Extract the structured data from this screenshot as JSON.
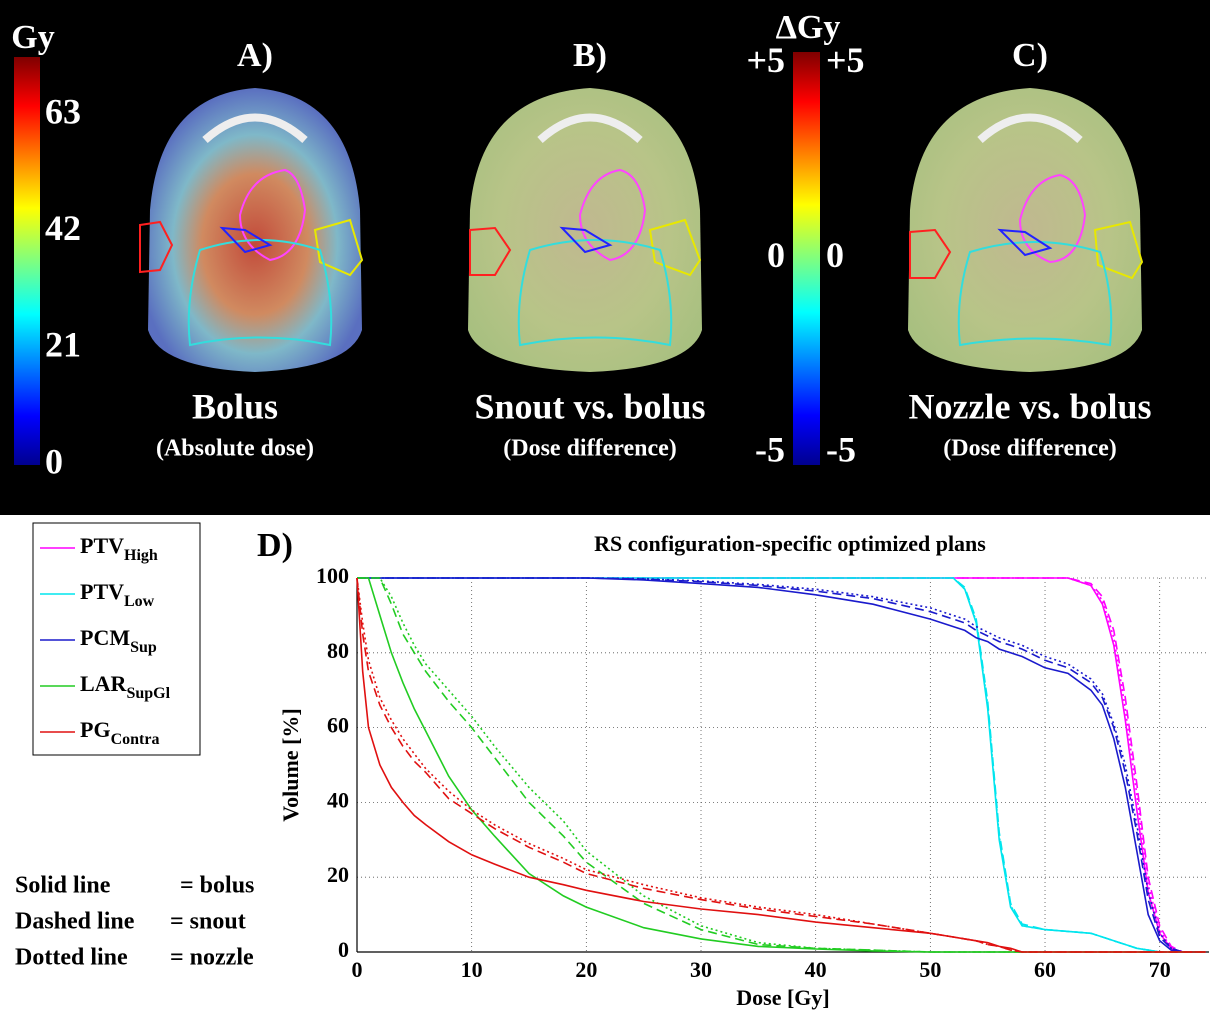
{
  "figure": {
    "colorbar_abs": {
      "unit": "Gy",
      "lim": [
        0,
        73.5
      ],
      "ticks": [
        0,
        21,
        42,
        63
      ]
    },
    "colorbar_diff": {
      "unit": "ΔGy",
      "lim": [
        -5.3,
        5.3
      ],
      "ticks": [
        {
          "value": 5,
          "label": "+5"
        },
        0,
        -5
      ]
    },
    "panels": [
      {
        "label": "A)",
        "title": "Bolus",
        "subtitle": "(Absolute dose)"
      },
      {
        "label": "B)",
        "title": "Snout vs. bolus",
        "subtitle": "(Dose difference)"
      },
      {
        "label": "C)",
        "title": "Nozzle vs. bolus",
        "subtitle": "(Dose difference)"
      }
    ]
  },
  "chart_data": {
    "type": "line",
    "panel_label": "D)",
    "title": "RS configuration-specific optimized plans",
    "x_label": "Dose [Gy]",
    "y_label": "Volume [%]",
    "xlim": [
      0,
      74.3
    ],
    "ylim": [
      0,
      100
    ],
    "xticks": [
      0,
      10,
      20,
      30,
      40,
      50,
      60,
      70
    ],
    "yticks": [
      0,
      20,
      40,
      60,
      80,
      100
    ],
    "grid": true,
    "plans": [
      {
        "style": "Solid line",
        "label": "= bolus",
        "dash": "solid"
      },
      {
        "style": "Dashed line",
        "label": "= snout",
        "dash": "dashed"
      },
      {
        "style": "Dotted line",
        "label": "= nozzle",
        "dash": "dotted"
      }
    ],
    "x": [
      0,
      0.5,
      1,
      2,
      3,
      4,
      5,
      6,
      8,
      10,
      12,
      15,
      18,
      20,
      25,
      30,
      35,
      40,
      45,
      50,
      52,
      53,
      54,
      55,
      56,
      57,
      58,
      60,
      62,
      64,
      65,
      66,
      67,
      68,
      69,
      70,
      71,
      72,
      74
    ],
    "series": [
      {
        "name": "PTV",
        "subscript": "High",
        "color": "#ff00ff",
        "values": [
          [
            100,
            100,
            100,
            100,
            100,
            100,
            100,
            100,
            100,
            100,
            100,
            100,
            100,
            100,
            100,
            100,
            100,
            100,
            100,
            100,
            100,
            100,
            100,
            100,
            100,
            100,
            100,
            100,
            100,
            98,
            93,
            82,
            62,
            38,
            16,
            5,
            1,
            0,
            0
          ],
          [
            100,
            100,
            100,
            100,
            100,
            100,
            100,
            100,
            100,
            100,
            100,
            100,
            100,
            100,
            100,
            100,
            100,
            100,
            100,
            100,
            100,
            100,
            100,
            100,
            100,
            100,
            100,
            100,
            100,
            98.5,
            95,
            86,
            68,
            45,
            20,
            7,
            1.5,
            0,
            0
          ],
          [
            100,
            100,
            100,
            100,
            100,
            100,
            100,
            100,
            100,
            100,
            100,
            100,
            100,
            100,
            100,
            100,
            100,
            100,
            100,
            100,
            100,
            100,
            100,
            100,
            100,
            100,
            100,
            100,
            100,
            98,
            94,
            84,
            65,
            42,
            18,
            6,
            1,
            0,
            0
          ]
        ]
      },
      {
        "name": "PTV",
        "subscript": "Low",
        "color": "#00e5ee",
        "values": [
          [
            100,
            100,
            100,
            100,
            100,
            100,
            100,
            100,
            100,
            100,
            100,
            100,
            100,
            100,
            100,
            100,
            100,
            100,
            100,
            100,
            100,
            97,
            88,
            65,
            30,
            12,
            7,
            6,
            5.5,
            5,
            4,
            3,
            2,
            1,
            0.5,
            0,
            0,
            0,
            0
          ],
          [
            100,
            100,
            100,
            100,
            100,
            100,
            100,
            100,
            100,
            100,
            100,
            100,
            100,
            100,
            100,
            100,
            100,
            100,
            100,
            100,
            100,
            97.5,
            89,
            67,
            32,
            13,
            7.5,
            6,
            5.5,
            5,
            4,
            3,
            2,
            1,
            0.5,
            0,
            0,
            0,
            0
          ],
          [
            100,
            100,
            100,
            100,
            100,
            100,
            100,
            100,
            100,
            100,
            100,
            100,
            100,
            100,
            100,
            100,
            100,
            100,
            100,
            100,
            100,
            97,
            88.5,
            66,
            31,
            12.5,
            7,
            6,
            5.5,
            5,
            4,
            3,
            2,
            1,
            0.5,
            0,
            0,
            0,
            0
          ]
        ]
      },
      {
        "name": "PCM",
        "subscript": "Sup",
        "color": "#1a1acc",
        "values": [
          [
            100,
            100,
            100,
            100,
            100,
            100,
            100,
            100,
            100,
            100,
            100,
            100,
            100,
            100,
            99.5,
            98.5,
            97.5,
            95.5,
            93,
            89,
            87,
            86,
            84,
            83,
            81,
            80,
            79,
            76,
            74.5,
            70,
            66,
            57,
            44,
            27,
            10,
            3,
            0.5,
            0,
            0
          ],
          [
            100,
            100,
            100,
            100,
            100,
            100,
            100,
            100,
            100,
            100,
            100,
            100,
            100,
            100,
            99.7,
            99,
            98,
            96.5,
            94.5,
            91,
            89,
            88,
            86,
            84.5,
            83,
            82,
            81,
            78,
            76,
            72,
            68,
            60,
            48,
            32,
            14,
            4,
            1,
            0,
            0
          ],
          [
            100,
            100,
            100,
            100,
            100,
            100,
            100,
            100,
            100,
            100,
            100,
            100,
            100,
            100,
            99.8,
            99.2,
            98.3,
            97,
            95,
            92,
            90,
            89,
            87,
            85.5,
            84,
            83,
            82,
            79,
            77,
            73,
            69,
            61,
            50,
            34,
            16,
            5,
            1,
            0,
            0
          ]
        ]
      },
      {
        "name": "LAR",
        "subscript": "SupGl",
        "color": "#22cc22",
        "values": [
          [
            100,
            100,
            100,
            90,
            80,
            72,
            65,
            59,
            47,
            38,
            31,
            21,
            15,
            12,
            6.5,
            3.5,
            1.5,
            0.8,
            0.3,
            0,
            0,
            0,
            0,
            0,
            0,
            0,
            0,
            0,
            0,
            0,
            0,
            0,
            0,
            0,
            0,
            0,
            0,
            0,
            0
          ],
          [
            100,
            100,
            100,
            100,
            93,
            85,
            80,
            75,
            67,
            60,
            52,
            40,
            31,
            24,
            13,
            6,
            2,
            1,
            0.5,
            0,
            0,
            0,
            0,
            0,
            0,
            0,
            0,
            0,
            0,
            0,
            0,
            0,
            0,
            0,
            0,
            0,
            0,
            0,
            0
          ],
          [
            100,
            100,
            100,
            100,
            95,
            88,
            82,
            77,
            70,
            63,
            55,
            44,
            35,
            27,
            15,
            7,
            2.5,
            1,
            0.5,
            0,
            0,
            0,
            0,
            0,
            0,
            0,
            0,
            0,
            0,
            0,
            0,
            0,
            0,
            0,
            0,
            0,
            0,
            0,
            0
          ]
        ]
      },
      {
        "name": "PG",
        "subscript": "Contra",
        "color": "#e01010",
        "values": [
          [
            100,
            75,
            60,
            50,
            44,
            40,
            36.5,
            34,
            29.5,
            26,
            23.5,
            20,
            18,
            16.5,
            13.5,
            11.5,
            10,
            8,
            6.5,
            5,
            4,
            3.5,
            3,
            2.5,
            1.5,
            1,
            0,
            0,
            0,
            0,
            0,
            0,
            0,
            0,
            0,
            0,
            0,
            0,
            0
          ],
          [
            100,
            85,
            75,
            66,
            60,
            55,
            51,
            48,
            41,
            37,
            33,
            28,
            24,
            21,
            17,
            14,
            11.5,
            9.5,
            7.5,
            5,
            4,
            3.5,
            3,
            2,
            1.5,
            0.5,
            0,
            0,
            0,
            0,
            0,
            0,
            0,
            0,
            0,
            0,
            0,
            0,
            0
          ],
          [
            100,
            88,
            78,
            68,
            62,
            57,
            53,
            49,
            43,
            38,
            34,
            29,
            25,
            22,
            18,
            14.5,
            12,
            10,
            7.5,
            5,
            4,
            3.5,
            3,
            2,
            1.5,
            0.5,
            0,
            0,
            0,
            0,
            0,
            0,
            0,
            0,
            0,
            0,
            0,
            0,
            0
          ]
        ]
      }
    ]
  }
}
